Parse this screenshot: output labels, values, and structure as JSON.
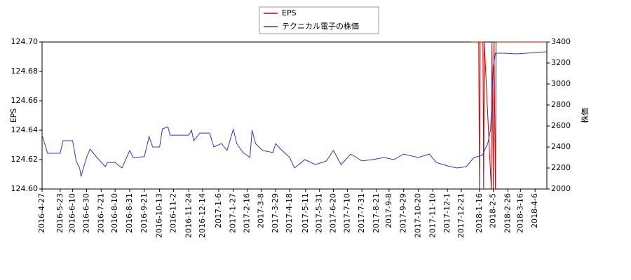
{
  "chart_data": {
    "type": "line",
    "legend": "upper center",
    "ylabel": "EPS",
    "y2label": "株価",
    "xlim": [
      "2016-4-27",
      "2018-4-23"
    ],
    "xticks": [
      "2016-4-27",
      "2016-5-23",
      "2016-6-10",
      "2016-6-30",
      "2016-7-21",
      "2016-8-10",
      "2016-8-31",
      "2016-9-21",
      "2016-10-13",
      "2016-11-2",
      "2016-11-24",
      "2016-12-14",
      "2017-1-6",
      "2017-1-27",
      "2017-2-16",
      "2017-3-8",
      "2017-3-29",
      "2017-4-18",
      "2017-5-11",
      "2017-5-31",
      "2017-6-20",
      "2017-7-10",
      "2017-7-31",
      "2017-8-21",
      "2017-9-8",
      "2017-9-29",
      "2017-10-20",
      "2017-11-10",
      "2017-12-1",
      "2017-12-21",
      "2018-1-16",
      "2018-2-5",
      "2018-2-26",
      "2018-3-16",
      "2018-4-6"
    ],
    "ylim": [
      124.6,
      124.7
    ],
    "yticks": [
      {
        "value": 124.6,
        "label": "124.60"
      },
      124.62,
      124.64,
      124.66,
      124.68,
      {
        "value": 124.7,
        "label": "124.70"
      }
    ],
    "y2lim": [
      2000,
      3400
    ],
    "y2ticks": [
      2000,
      2200,
      2400,
      2600,
      2800,
      3000,
      3200,
      3400
    ],
    "series": [
      {
        "name": "EPS",
        "color": "#cc0000",
        "x": [
          "2018-1-4",
          "2018-1-15",
          "2018-1-16",
          "2018-1-17",
          "2018-1-21",
          "2018-1-22",
          "2018-1-23",
          "2018-2-2",
          "2018-2-3",
          "2018-2-5",
          "2018-2-6",
          "2018-2-8",
          "2018-2-9",
          "2018-4-23"
        ],
        "values": [
          124.7,
          124.7,
          124.6,
          124.7,
          124.7,
          124.6,
          124.7,
          124.6,
          124.7,
          124.6,
          124.7,
          124.6,
          124.7,
          124.7
        ]
      },
      {
        "name": "テクニカル電子の株価",
        "color": "#3333cc",
        "axis": "y2",
        "x": [
          "2016-4-27",
          "2016-5-5",
          "2016-5-23",
          "2016-5-27",
          "2016-6-10",
          "2016-6-15",
          "2016-6-20",
          "2016-6-22",
          "2016-6-30",
          "2016-7-5",
          "2016-7-15",
          "2016-7-27",
          "2016-7-30",
          "2016-8-10",
          "2016-8-20",
          "2016-8-31",
          "2016-9-5",
          "2016-9-21",
          "2016-9-28",
          "2016-10-3",
          "2016-10-13",
          "2016-10-17",
          "2016-10-25",
          "2016-10-28",
          "2016-11-24",
          "2016-11-28",
          "2016-12-1",
          "2016-12-10",
          "2016-12-24",
          "2016-12-30",
          "2017-1-10",
          "2017-1-18",
          "2017-1-27",
          "2017-2-1",
          "2017-2-10",
          "2017-2-20",
          "2017-2-23",
          "2017-2-28",
          "2017-3-10",
          "2017-3-25",
          "2017-3-29",
          "2017-4-5",
          "2017-4-18",
          "2017-4-25",
          "2017-5-10",
          "2017-5-25",
          "2017-6-10",
          "2017-6-20",
          "2017-7-1",
          "2017-7-15",
          "2017-7-31",
          "2017-8-15",
          "2017-9-1",
          "2017-9-15",
          "2017-9-29",
          "2017-10-20",
          "2017-11-5",
          "2017-11-15",
          "2017-12-1",
          "2017-12-15",
          "2017-12-28",
          "2018-1-8",
          "2018-1-20",
          "2018-1-28",
          "2018-2-1",
          "2018-2-5",
          "2018-2-8",
          "2018-2-20",
          "2018-3-10",
          "2018-3-25",
          "2018-4-23"
        ],
        "values": [
          2513,
          2340,
          2340,
          2460,
          2460,
          2267,
          2200,
          2120,
          2300,
          2380,
          2300,
          2213,
          2253,
          2253,
          2200,
          2367,
          2300,
          2307,
          2500,
          2400,
          2400,
          2573,
          2593,
          2513,
          2513,
          2560,
          2460,
          2533,
          2533,
          2400,
          2433,
          2367,
          2567,
          2433,
          2347,
          2300,
          2560,
          2433,
          2367,
          2347,
          2433,
          2380,
          2300,
          2200,
          2280,
          2233,
          2267,
          2367,
          2233,
          2333,
          2267,
          2280,
          2300,
          2280,
          2333,
          2300,
          2333,
          2253,
          2220,
          2200,
          2213,
          2300,
          2320,
          2433,
          2567,
          3167,
          3293,
          3293,
          3287,
          3293,
          3307
        ]
      }
    ]
  }
}
